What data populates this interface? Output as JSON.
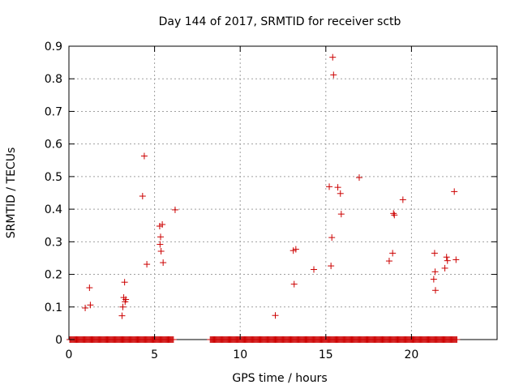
{
  "chart_data": {
    "type": "scatter",
    "title": "Day 144 of 2017, SRMTID for receiver sctb",
    "xlabel": "GPS time / hours",
    "ylabel": "SRMTID / TECUs",
    "xlim": [
      0,
      25
    ],
    "ylim": [
      0,
      0.9
    ],
    "xticks": [
      0,
      5,
      10,
      15,
      20
    ],
    "yticks": [
      0,
      0.1,
      0.2,
      0.3,
      0.4,
      0.5,
      0.6,
      0.7,
      0.8,
      0.9
    ],
    "grid": true,
    "marker": "+",
    "color": "#cc0000",
    "zero_runs": [
      [
        0.05,
        6.1,
        0.05
      ],
      [
        8.25,
        22.65,
        0.05
      ]
    ],
    "points": [
      {
        "x": 0.95,
        "y": 0.097
      },
      {
        "x": 1.2,
        "y": 0.159
      },
      {
        "x": 1.25,
        "y": 0.106
      },
      {
        "x": 3.1,
        "y": 0.073
      },
      {
        "x": 3.15,
        "y": 0.1
      },
      {
        "x": 3.2,
        "y": 0.129
      },
      {
        "x": 3.25,
        "y": 0.176
      },
      {
        "x": 3.28,
        "y": 0.116
      },
      {
        "x": 3.32,
        "y": 0.123
      },
      {
        "x": 4.3,
        "y": 0.44
      },
      {
        "x": 4.4,
        "y": 0.563
      },
      {
        "x": 4.55,
        "y": 0.231
      },
      {
        "x": 5.3,
        "y": 0.348
      },
      {
        "x": 5.32,
        "y": 0.292
      },
      {
        "x": 5.35,
        "y": 0.315
      },
      {
        "x": 5.38,
        "y": 0.271
      },
      {
        "x": 5.45,
        "y": 0.353
      },
      {
        "x": 5.5,
        "y": 0.236
      },
      {
        "x": 6.2,
        "y": 0.398
      },
      {
        "x": 12.05,
        "y": 0.074
      },
      {
        "x": 13.1,
        "y": 0.273
      },
      {
        "x": 13.15,
        "y": 0.17
      },
      {
        "x": 13.25,
        "y": 0.277
      },
      {
        "x": 14.3,
        "y": 0.215
      },
      {
        "x": 15.2,
        "y": 0.469
      },
      {
        "x": 15.3,
        "y": 0.226
      },
      {
        "x": 15.35,
        "y": 0.313
      },
      {
        "x": 15.4,
        "y": 0.866
      },
      {
        "x": 15.45,
        "y": 0.812
      },
      {
        "x": 15.7,
        "y": 0.467
      },
      {
        "x": 15.85,
        "y": 0.448
      },
      {
        "x": 15.9,
        "y": 0.385
      },
      {
        "x": 16.95,
        "y": 0.497
      },
      {
        "x": 18.7,
        "y": 0.241
      },
      {
        "x": 18.9,
        "y": 0.265
      },
      {
        "x": 18.95,
        "y": 0.387
      },
      {
        "x": 19.0,
        "y": 0.382
      },
      {
        "x": 19.5,
        "y": 0.429
      },
      {
        "x": 21.3,
        "y": 0.185
      },
      {
        "x": 21.35,
        "y": 0.265
      },
      {
        "x": 21.38,
        "y": 0.208
      },
      {
        "x": 21.4,
        "y": 0.151
      },
      {
        "x": 21.95,
        "y": 0.219
      },
      {
        "x": 22.05,
        "y": 0.253
      },
      {
        "x": 22.1,
        "y": 0.242
      },
      {
        "x": 22.5,
        "y": 0.454
      },
      {
        "x": 22.6,
        "y": 0.245
      }
    ]
  }
}
